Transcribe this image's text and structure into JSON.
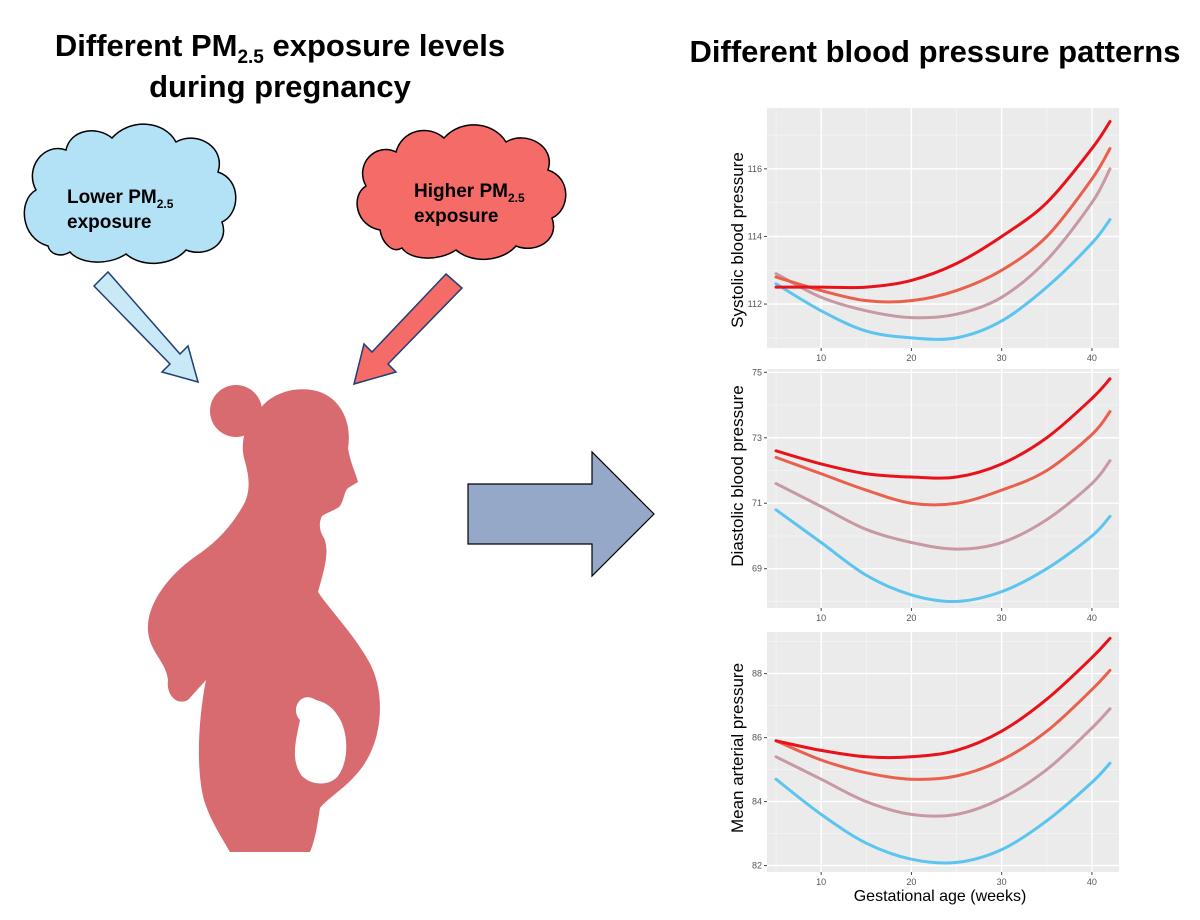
{
  "left_title": {
    "line1_pre": "Different PM",
    "line1_sub": "2.5",
    "line1_post": " exposure levels",
    "line2": "during pregnancy"
  },
  "right_title": "Different blood pressure patterns",
  "lower_cloud": {
    "pre": "Lower PM",
    "sub": "2.5",
    "line2": "exposure",
    "color": "#b3e2f7"
  },
  "higher_cloud": {
    "pre": "Higher PM",
    "sub": "2.5",
    "line2": "exposure",
    "color": "#f56b68"
  },
  "colors": {
    "silhouette": "#d86b70",
    "left_arrow": "#c9e9f7",
    "right_arrow": "#f56b68",
    "big_arrow": "#95a8c8",
    "panel_bg": "#ebebeb"
  },
  "chart_data": [
    {
      "type": "line",
      "ylabel": "Systolic blood pressure",
      "xlabel": "",
      "xlim": [
        4,
        43
      ],
      "ylim": [
        110.7,
        117.8
      ],
      "xticks": [
        "10",
        "20",
        "30",
        "40"
      ],
      "yticks": [
        "112",
        "114",
        "116"
      ],
      "x": [
        5,
        10,
        15,
        20,
        25,
        30,
        35,
        40,
        42
      ],
      "series": [
        {
          "color": "#5bc4ef",
          "values": [
            112.6,
            111.8,
            111.2,
            111.0,
            111.0,
            111.5,
            112.5,
            113.8,
            114.5
          ]
        },
        {
          "color": "#c899a3",
          "values": [
            112.9,
            112.2,
            111.8,
            111.6,
            111.7,
            112.2,
            113.3,
            115.0,
            116.0
          ]
        },
        {
          "color": "#e9604d",
          "values": [
            112.8,
            112.4,
            112.1,
            112.1,
            112.4,
            113.0,
            114.0,
            115.7,
            116.6
          ]
        },
        {
          "color": "#e8121b",
          "values": [
            112.5,
            112.5,
            112.5,
            112.7,
            113.2,
            114.0,
            115.0,
            116.6,
            117.4
          ]
        }
      ]
    },
    {
      "type": "line",
      "ylabel": "Diastolic blood pressure",
      "xlabel": "",
      "xlim": [
        4,
        43
      ],
      "ylim": [
        67.8,
        75.1
      ],
      "xticks": [
        "10",
        "20",
        "30",
        "40"
      ],
      "yticks": [
        "69",
        "71",
        "73",
        "75"
      ],
      "x": [
        5,
        10,
        15,
        20,
        25,
        30,
        35,
        40,
        42
      ],
      "series": [
        {
          "color": "#5bc4ef",
          "values": [
            70.8,
            69.8,
            68.8,
            68.2,
            68.0,
            68.3,
            69.0,
            70.0,
            70.6
          ]
        },
        {
          "color": "#c899a3",
          "values": [
            71.6,
            70.9,
            70.2,
            69.8,
            69.6,
            69.8,
            70.5,
            71.6,
            72.3
          ]
        },
        {
          "color": "#e9604d",
          "values": [
            72.4,
            71.9,
            71.4,
            71.0,
            71.0,
            71.4,
            72.0,
            73.1,
            73.8
          ]
        },
        {
          "color": "#e8121b",
          "values": [
            72.6,
            72.2,
            71.9,
            71.8,
            71.8,
            72.2,
            73.0,
            74.2,
            74.8
          ]
        }
      ]
    },
    {
      "type": "line",
      "ylabel": "Mean arterial pressure",
      "xlabel": "Gestational age (weeks)",
      "xlim": [
        4,
        43
      ],
      "ylim": [
        81.8,
        89.3
      ],
      "xticks": [
        "10",
        "20",
        "30",
        "40"
      ],
      "yticks": [
        "82",
        "84",
        "86",
        "88"
      ],
      "x": [
        5,
        10,
        15,
        20,
        25,
        30,
        35,
        40,
        42
      ],
      "series": [
        {
          "color": "#5bc4ef",
          "values": [
            84.7,
            83.6,
            82.7,
            82.2,
            82.1,
            82.5,
            83.4,
            84.6,
            85.2
          ]
        },
        {
          "color": "#c899a3",
          "values": [
            85.4,
            84.7,
            84.0,
            83.6,
            83.6,
            84.1,
            85.0,
            86.3,
            86.9
          ]
        },
        {
          "color": "#e9604d",
          "values": [
            85.9,
            85.3,
            84.9,
            84.7,
            84.8,
            85.3,
            86.2,
            87.5,
            88.1
          ]
        },
        {
          "color": "#e8121b",
          "values": [
            85.9,
            85.6,
            85.4,
            85.4,
            85.6,
            86.2,
            87.2,
            88.5,
            89.1
          ]
        }
      ]
    }
  ]
}
